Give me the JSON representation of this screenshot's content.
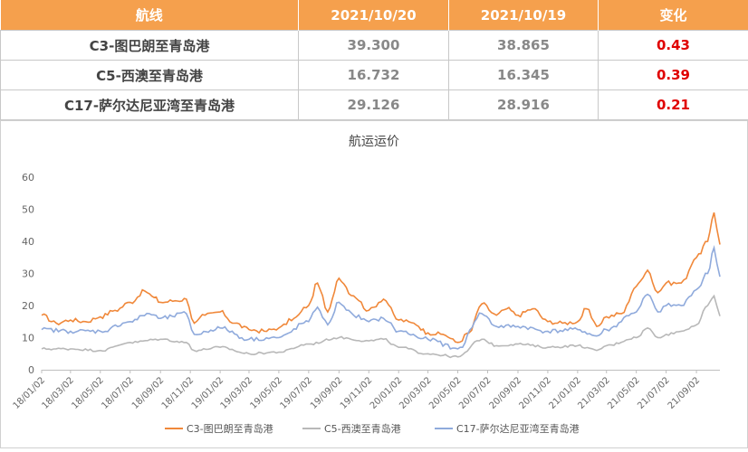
{
  "table": {
    "headers": [
      "航线",
      "2021/10/20",
      "2021/10/19",
      "变化"
    ],
    "rows": [
      {
        "route": "C3-图巴朗至青岛港",
        "v1": "39.300",
        "v2": "38.865",
        "change": "0.43"
      },
      {
        "route": "C5-西澳至青岛港",
        "v1": "16.732",
        "v2": "16.345",
        "change": "0.39"
      },
      {
        "route": "C17-萨尔达尼亚湾至青岛港",
        "v1": "29.126",
        "v2": "28.916",
        "change": "0.21"
      }
    ]
  },
  "colors": {
    "header_bg": "#f5a04d",
    "change": "#e00000",
    "c3": "#f0883a",
    "c5": "#b8b8b8",
    "c17": "#8faadc"
  },
  "chart_data": {
    "type": "line",
    "title": "航运运价",
    "ylim": [
      0,
      60
    ],
    "yticks": [
      0,
      10,
      20,
      30,
      40,
      50,
      60
    ],
    "grid": false,
    "legend": "bottom",
    "x_labels": [
      "18/01/02",
      "18/03/02",
      "18/05/02",
      "18/07/02",
      "18/09/02",
      "18/11/02",
      "19/01/02",
      "19/03/02",
      "19/05/02",
      "19/07/02",
      "19/09/02",
      "19/11/02",
      "20/01/02",
      "20/03/02",
      "20/05/02",
      "20/07/02",
      "20/09/02",
      "20/11/02",
      "21/01/02",
      "21/03/02",
      "21/05/02",
      "21/07/02",
      "21/09/02"
    ],
    "x_dates": [
      "2018-01-02",
      "2018-03-02",
      "2018-05-02",
      "2018-07-02",
      "2018-09-02",
      "2018-11-02",
      "2019-01-02",
      "2019-03-02",
      "2019-05-02",
      "2019-07-02",
      "2019-09-02",
      "2019-11-02",
      "2020-01-02",
      "2020-03-02",
      "2020-05-02",
      "2020-07-02",
      "2020-09-02",
      "2020-11-02",
      "2021-01-02",
      "2021-03-02",
      "2021-05-02",
      "2021-07-02",
      "2021-09-02"
    ],
    "series": [
      {
        "name": "C3-图巴朗至青岛港",
        "points": [
          [
            "2018-01-02",
            17
          ],
          [
            "2018-02-01",
            14.5
          ],
          [
            "2018-03-02",
            15.5
          ],
          [
            "2018-04-02",
            15
          ],
          [
            "2018-05-02",
            16.5
          ],
          [
            "2018-06-01",
            18.5
          ],
          [
            "2018-07-02",
            21
          ],
          [
            "2018-08-01",
            24.5
          ],
          [
            "2018-08-20",
            22.5
          ],
          [
            "2018-09-02",
            21
          ],
          [
            "2018-10-02",
            21.5
          ],
          [
            "2018-10-25",
            22
          ],
          [
            "2018-11-10",
            14.5
          ],
          [
            "2018-12-02",
            17
          ],
          [
            "2019-01-02",
            18
          ],
          [
            "2019-02-01",
            14.5
          ],
          [
            "2019-03-02",
            12.5
          ],
          [
            "2019-04-02",
            12
          ],
          [
            "2019-05-02",
            13
          ],
          [
            "2019-06-02",
            16
          ],
          [
            "2019-07-02",
            20
          ],
          [
            "2019-07-20",
            27
          ],
          [
            "2019-08-10",
            18
          ],
          [
            "2019-09-02",
            28.5
          ],
          [
            "2019-10-02",
            23
          ],
          [
            "2019-11-02",
            18.5
          ],
          [
            "2019-12-02",
            22
          ],
          [
            "2020-01-02",
            15.5
          ],
          [
            "2020-02-02",
            14.5
          ],
          [
            "2020-03-02",
            11.5
          ],
          [
            "2020-04-02",
            11
          ],
          [
            "2020-05-02",
            8.5
          ],
          [
            "2020-05-25",
            11.5
          ],
          [
            "2020-06-20",
            20.5
          ],
          [
            "2020-07-20",
            17
          ],
          [
            "2020-08-10",
            19
          ],
          [
            "2020-09-02",
            17
          ],
          [
            "2020-10-02",
            19
          ],
          [
            "2020-11-02",
            15
          ],
          [
            "2020-12-02",
            14.5
          ],
          [
            "2021-01-02",
            15
          ],
          [
            "2021-01-20",
            19
          ],
          [
            "2021-02-10",
            13.5
          ],
          [
            "2021-03-02",
            16.5
          ],
          [
            "2021-04-02",
            17.5
          ],
          [
            "2021-05-02",
            26
          ],
          [
            "2021-05-25",
            31
          ],
          [
            "2021-06-15",
            24
          ],
          [
            "2021-07-02",
            27
          ],
          [
            "2021-08-02",
            27
          ],
          [
            "2021-09-02",
            35
          ],
          [
            "2021-09-25",
            40
          ],
          [
            "2021-10-08",
            49
          ],
          [
            "2021-10-20",
            39
          ]
        ]
      },
      {
        "name": "C5-西澳至青岛港",
        "points": [
          [
            "2018-01-02",
            6.5
          ],
          [
            "2018-03-02",
            6.5
          ],
          [
            "2018-05-02",
            6
          ],
          [
            "2018-07-02",
            8.5
          ],
          [
            "2018-09-02",
            9.5
          ],
          [
            "2018-10-25",
            8.5
          ],
          [
            "2018-11-10",
            6
          ],
          [
            "2019-01-02",
            7
          ],
          [
            "2019-03-02",
            5
          ],
          [
            "2019-05-02",
            5.5
          ],
          [
            "2019-07-02",
            8
          ],
          [
            "2019-09-02",
            10
          ],
          [
            "2019-11-02",
            9
          ],
          [
            "2019-12-02",
            9.5
          ],
          [
            "2020-01-02",
            7
          ],
          [
            "2020-03-02",
            5
          ],
          [
            "2020-05-02",
            4
          ],
          [
            "2020-06-20",
            9.5
          ],
          [
            "2020-07-20",
            7.5
          ],
          [
            "2020-09-02",
            8
          ],
          [
            "2020-11-02",
            7
          ],
          [
            "2021-01-02",
            7.5
          ],
          [
            "2021-02-10",
            6
          ],
          [
            "2021-03-02",
            7.5
          ],
          [
            "2021-05-02",
            10
          ],
          [
            "2021-05-25",
            13
          ],
          [
            "2021-06-15",
            10
          ],
          [
            "2021-07-02",
            11
          ],
          [
            "2021-08-02",
            12
          ],
          [
            "2021-09-02",
            14
          ],
          [
            "2021-09-25",
            20
          ],
          [
            "2021-10-08",
            23
          ],
          [
            "2021-10-20",
            16.7
          ]
        ]
      },
      {
        "name": "C17-萨尔达尼亚湾至青岛港",
        "points": [
          [
            "2018-01-02",
            12.5
          ],
          [
            "2018-03-02",
            12
          ],
          [
            "2018-05-02",
            12
          ],
          [
            "2018-07-02",
            15
          ],
          [
            "2018-08-10",
            17.5
          ],
          [
            "2018-09-02",
            16
          ],
          [
            "2018-10-25",
            17.5
          ],
          [
            "2018-11-10",
            11
          ],
          [
            "2019-01-02",
            13
          ],
          [
            "2019-03-02",
            9.5
          ],
          [
            "2019-05-02",
            10
          ],
          [
            "2019-07-02",
            15
          ],
          [
            "2019-07-20",
            19.5
          ],
          [
            "2019-08-10",
            14
          ],
          [
            "2019-09-02",
            21
          ],
          [
            "2019-10-02",
            17
          ],
          [
            "2019-11-02",
            15
          ],
          [
            "2019-12-02",
            16
          ],
          [
            "2020-01-02",
            12
          ],
          [
            "2020-03-02",
            9.5
          ],
          [
            "2020-05-02",
            6.5
          ],
          [
            "2020-06-20",
            17.5
          ],
          [
            "2020-07-20",
            13.5
          ],
          [
            "2020-09-02",
            13.5
          ],
          [
            "2020-11-02",
            12
          ],
          [
            "2021-01-02",
            12.5
          ],
          [
            "2021-02-10",
            10.5
          ],
          [
            "2021-03-02",
            12.5
          ],
          [
            "2021-05-02",
            18
          ],
          [
            "2021-05-25",
            23.5
          ],
          [
            "2021-06-15",
            18
          ],
          [
            "2021-07-02",
            20
          ],
          [
            "2021-08-02",
            20
          ],
          [
            "2021-09-02",
            25
          ],
          [
            "2021-09-25",
            30
          ],
          [
            "2021-10-08",
            38
          ],
          [
            "2021-10-20",
            29
          ]
        ]
      }
    ]
  }
}
